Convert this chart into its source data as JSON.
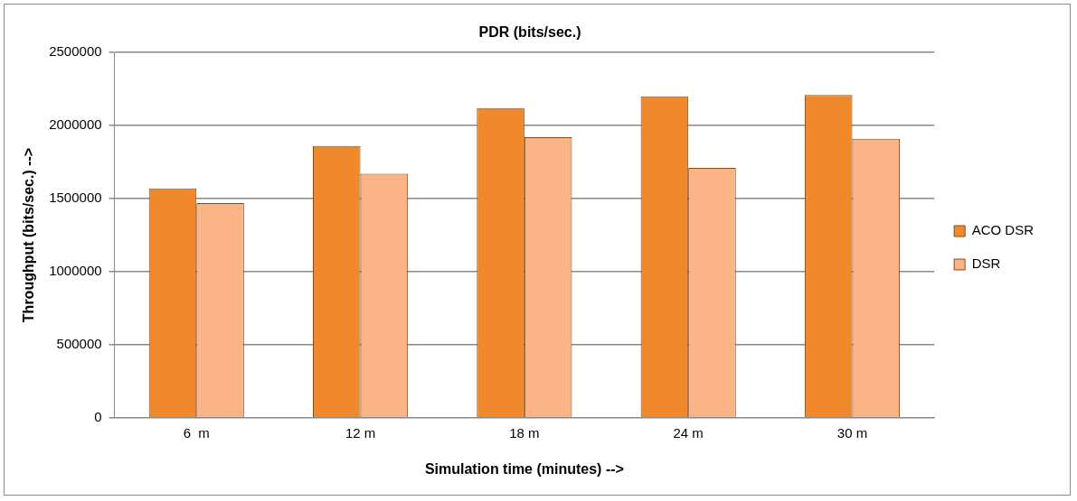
{
  "chart_data": {
    "type": "bar",
    "title": "PDR (bits/sec.)",
    "xlabel": "Simulation time (minutes) -->",
    "ylabel": "Throughput (bits/sec.) -->",
    "categories": [
      "6  m",
      "12 m",
      "18 m",
      "24 m",
      "30 m"
    ],
    "series": [
      {
        "name": "ACO DSR",
        "color": "#f0892c",
        "values": [
          1570000,
          1860000,
          2120000,
          2200000,
          2210000
        ]
      },
      {
        "name": "DSR",
        "color": "#fbb488",
        "values": [
          1470000,
          1670000,
          1920000,
          1710000,
          1910000
        ]
      }
    ],
    "ylim": [
      0,
      2500000
    ],
    "yticks": [
      0,
      500000,
      1000000,
      1500000,
      2000000,
      2500000
    ],
    "grid": "y",
    "legend": "right"
  }
}
